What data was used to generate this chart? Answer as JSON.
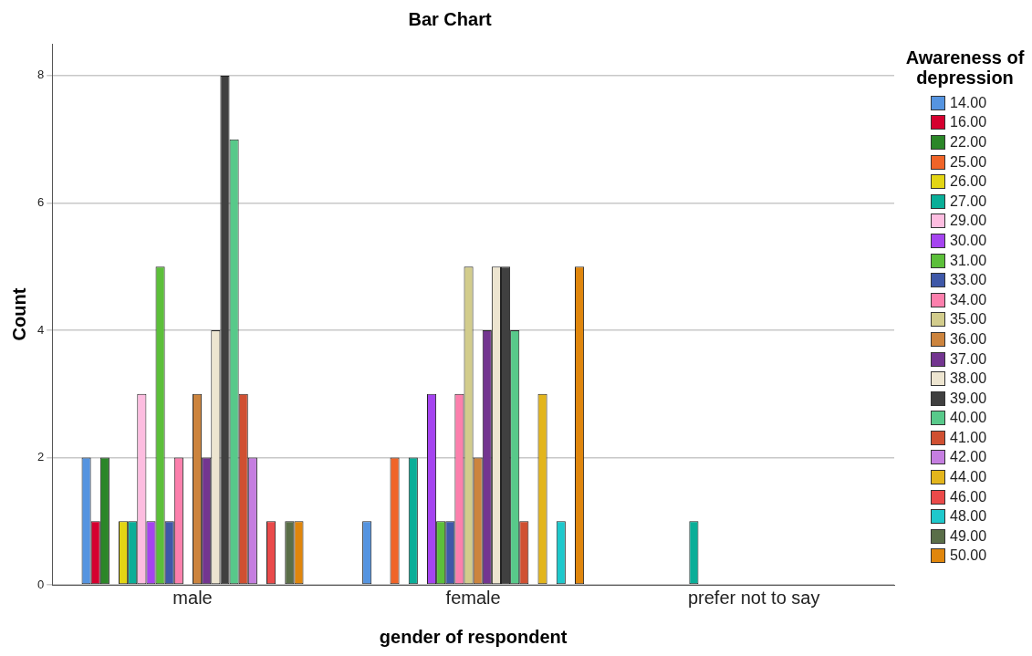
{
  "chart_data": {
    "type": "bar",
    "title": "Bar Chart",
    "xlabel": "gender of respondent",
    "ylabel": "Count",
    "legend_title": "Awareness of depression",
    "categories": [
      "male",
      "female",
      "prefer not to say"
    ],
    "ylim": [
      0,
      8.5
    ],
    "yticks": [
      0,
      2,
      4,
      6,
      8
    ],
    "grid": "y",
    "legend": "right",
    "series": [
      {
        "name": "14.00",
        "color": "#5594e0",
        "values": [
          2,
          1,
          0
        ]
      },
      {
        "name": "16.00",
        "color": "#d5002f",
        "values": [
          1,
          0,
          0
        ]
      },
      {
        "name": "22.00",
        "color": "#2b8628",
        "values": [
          2,
          0,
          0
        ]
      },
      {
        "name": "25.00",
        "color": "#f06428",
        "values": [
          0,
          2,
          0
        ]
      },
      {
        "name": "26.00",
        "color": "#e3d514",
        "values": [
          1,
          0,
          0
        ]
      },
      {
        "name": "27.00",
        "color": "#0aae98",
        "values": [
          1,
          2,
          1
        ]
      },
      {
        "name": "29.00",
        "color": "#fdbde0",
        "values": [
          3,
          0,
          0
        ]
      },
      {
        "name": "30.00",
        "color": "#a544f0",
        "values": [
          1,
          3,
          0
        ]
      },
      {
        "name": "31.00",
        "color": "#5cbf3a",
        "values": [
          5,
          1,
          0
        ]
      },
      {
        "name": "33.00",
        "color": "#3f58a8",
        "values": [
          1,
          1,
          0
        ]
      },
      {
        "name": "34.00",
        "color": "#fc7fac",
        "values": [
          2,
          3,
          0
        ]
      },
      {
        "name": "35.00",
        "color": "#d2cc8c",
        "values": [
          0,
          5,
          0
        ]
      },
      {
        "name": "36.00",
        "color": "#cc843e",
        "values": [
          3,
          2,
          0
        ]
      },
      {
        "name": "37.00",
        "color": "#733590",
        "values": [
          2,
          4,
          0
        ]
      },
      {
        "name": "38.00",
        "color": "#ede5d0",
        "values": [
          4,
          5,
          0
        ]
      },
      {
        "name": "39.00",
        "color": "#404040",
        "values": [
          8,
          5,
          0
        ]
      },
      {
        "name": "40.00",
        "color": "#58c98a",
        "values": [
          7,
          4,
          0
        ]
      },
      {
        "name": "41.00",
        "color": "#d05032",
        "values": [
          3,
          1,
          0
        ]
      },
      {
        "name": "42.00",
        "color": "#c57ee0",
        "values": [
          2,
          0,
          0
        ]
      },
      {
        "name": "44.00",
        "color": "#e3b51c",
        "values": [
          0,
          3,
          0
        ]
      },
      {
        "name": "46.00",
        "color": "#ea4a4a",
        "values": [
          1,
          0,
          0
        ]
      },
      {
        "name": "48.00",
        "color": "#1ec8cc",
        "values": [
          0,
          1,
          0
        ]
      },
      {
        "name": "49.00",
        "color": "#5a6e48",
        "values": [
          1,
          0,
          0
        ]
      },
      {
        "name": "50.00",
        "color": "#e0860c",
        "values": [
          1,
          5,
          0
        ]
      }
    ]
  }
}
